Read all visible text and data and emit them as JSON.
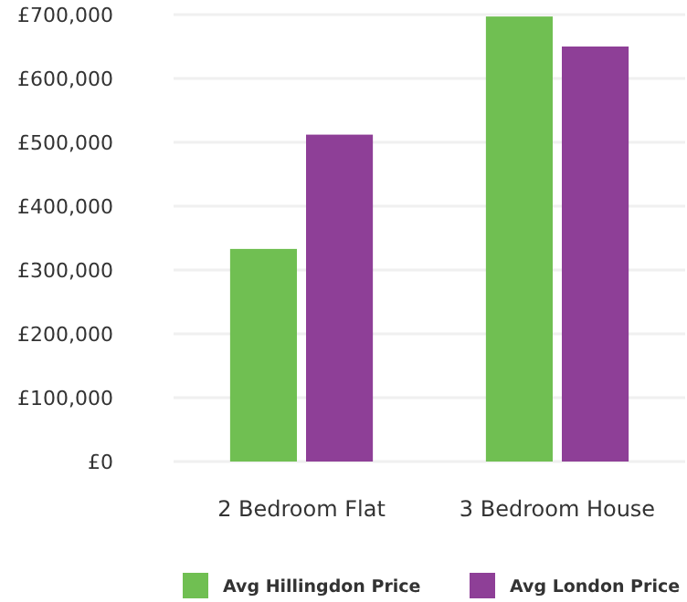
{
  "chart_data": {
    "type": "bar",
    "categories": [
      "2 Bedroom Flat",
      "3 Bedroom House"
    ],
    "series": [
      {
        "name": "Avg Hillingdon Price",
        "color": "#70bf52",
        "values": [
          333000,
          697000
        ]
      },
      {
        "name": "Avg London Price",
        "color": "#8e3f97",
        "values": [
          512000,
          650000
        ]
      }
    ],
    "ylim": [
      0,
      700000
    ],
    "yticks": [
      {
        "value": 0,
        "label": "£0"
      },
      {
        "value": 100000,
        "label": "£100,000"
      },
      {
        "value": 200000,
        "label": "£200,000"
      },
      {
        "value": 300000,
        "label": "£300,000"
      },
      {
        "value": 400000,
        "label": "£400,000"
      },
      {
        "value": 500000,
        "label": "£500,000"
      },
      {
        "value": 600000,
        "label": "£600,000"
      },
      {
        "value": 700000,
        "label": "£700,000"
      }
    ],
    "grid": "y",
    "legend": "bottom"
  }
}
